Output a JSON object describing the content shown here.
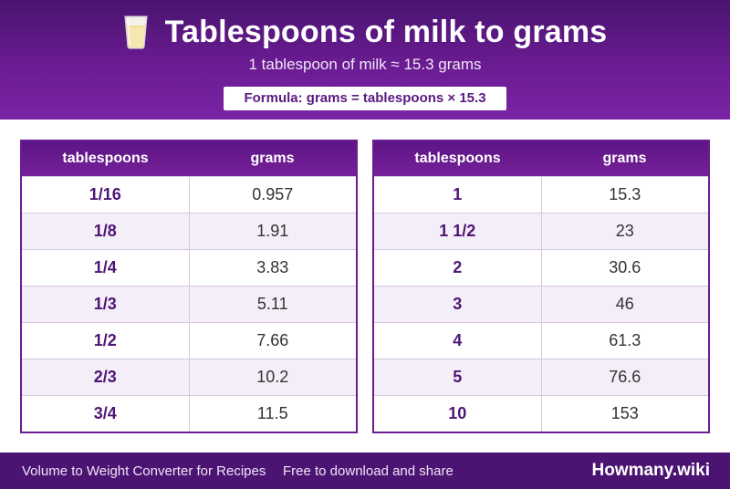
{
  "header": {
    "icon": "milk-glass-icon",
    "title": "Tablespoons of milk to grams",
    "subtitle": "1 tablespoon of milk ≈ 15.3 grams",
    "formula": "Formula: grams = tablespoons × 15.3"
  },
  "tables": {
    "left": {
      "columns": [
        "tablespoons",
        "grams"
      ],
      "rows": [
        [
          "1/16",
          "0.957"
        ],
        [
          "1/8",
          "1.91"
        ],
        [
          "1/4",
          "3.83"
        ],
        [
          "1/3",
          "5.11"
        ],
        [
          "1/2",
          "7.66"
        ],
        [
          "2/3",
          "10.2"
        ],
        [
          "3/4",
          "11.5"
        ]
      ]
    },
    "right": {
      "columns": [
        "tablespoons",
        "grams"
      ],
      "rows": [
        [
          "1",
          "15.3"
        ],
        [
          "1 1/2",
          "23"
        ],
        [
          "2",
          "30.6"
        ],
        [
          "3",
          "46"
        ],
        [
          "4",
          "61.3"
        ],
        [
          "5",
          "76.6"
        ],
        [
          "10",
          "153"
        ]
      ]
    }
  },
  "footer": {
    "text_left": "Volume to Weight Converter for Recipes",
    "text_mid": "Free to download and share",
    "brand": "Howmany.wiki"
  },
  "colors": {
    "header_purple": "#6a1c92",
    "footer_purple": "#4c1472",
    "row_alt": "#f3eef8",
    "label_purple": "#4e1574"
  }
}
